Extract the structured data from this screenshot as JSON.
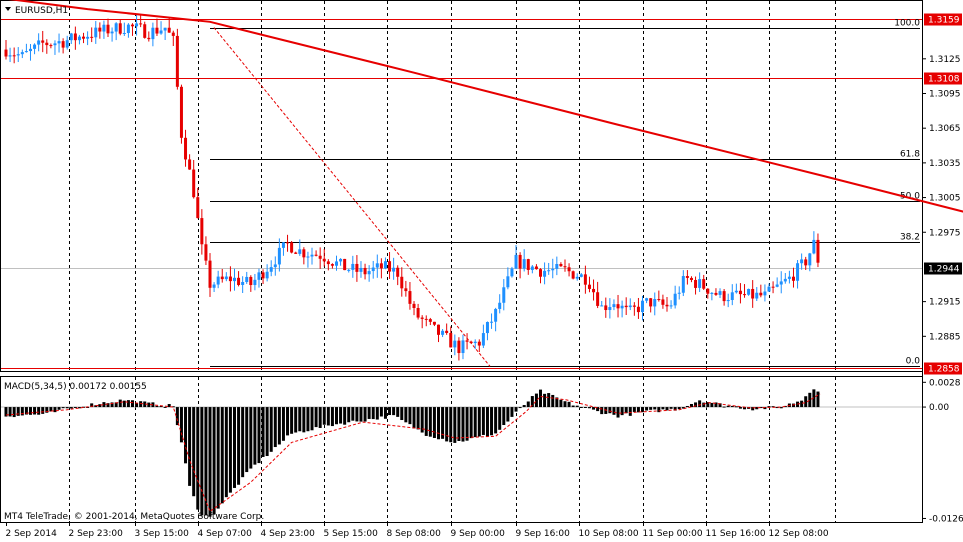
{
  "window": {
    "title": "EURUSD,H1",
    "copyright": "MT4 TeleTrade, © 2001-2014, MetaQuotes Software Corp."
  },
  "colors": {
    "bull": "#1e90ff",
    "bear": "#e60000",
    "ma": "#e60000",
    "line": "#e60000",
    "grid": "#000000",
    "macd": "#000000"
  },
  "chart_data": [
    {
      "type": "candlestick",
      "title": "EURUSD,H1",
      "ylim": [
        1.2855,
        1.3175
      ],
      "grid": true,
      "y_ticks": [
        "1.3125",
        "1.3095",
        "1.3065",
        "1.3035",
        "1.3005",
        "1.2975",
        "1.2915",
        "1.2885"
      ],
      "x_ticks": [
        "2 Sep 2014",
        "2 Sep 23:00",
        "3 Sep 15:00",
        "4 Sep 07:00",
        "4 Sep 23:00",
        "5 Sep 15:00",
        "8 Sep 08:00",
        "9 Sep 00:00",
        "9 Sep 16:00",
        "10 Sep 08:00",
        "11 Sep 00:00",
        "11 Sep 16:00",
        "12 Sep 08:00"
      ],
      "price_labels": [
        {
          "label": "1.3159",
          "price": 1.3159
        },
        {
          "label": "1.3108",
          "price": 1.3108
        },
        {
          "label": "1.2944",
          "price": 1.2944
        },
        {
          "label": "1.2858",
          "price": 1.2858
        }
      ],
      "fibonacci": [
        {
          "level": "100.0",
          "price": 1.3152
        },
        {
          "level": "61.8",
          "price": 1.3038
        },
        {
          "level": "50.0",
          "price": 1.3002
        },
        {
          "level": "38.2",
          "price": 1.2967
        },
        {
          "level": "0.0",
          "price": 1.2859
        }
      ],
      "moving_average": [
        [
          0,
          1.3177
        ],
        [
          40,
          1.3168
        ],
        [
          100,
          1.3157
        ],
        [
          200,
          1.3113
        ],
        [
          300,
          1.3068
        ],
        [
          400,
          1.3024
        ],
        [
          480,
          1.2988
        ]
      ],
      "close_anchors": [
        [
          0,
          1.3133
        ],
        [
          8,
          1.3127
        ],
        [
          18,
          1.3138
        ],
        [
          28,
          1.314
        ],
        [
          40,
          1.3146
        ],
        [
          50,
          1.315
        ],
        [
          60,
          1.3153
        ],
        [
          70,
          1.3148
        ],
        [
          78,
          1.3152
        ],
        [
          82,
          1.314
        ],
        [
          86,
          1.306
        ],
        [
          92,
          1.301
        ],
        [
          96,
          1.296
        ],
        [
          100,
          1.293
        ],
        [
          110,
          1.2935
        ],
        [
          120,
          1.293
        ],
        [
          130,
          1.2948
        ],
        [
          138,
          1.2965
        ],
        [
          145,
          1.2958
        ],
        [
          155,
          1.2955
        ],
        [
          165,
          1.2945
        ],
        [
          175,
          1.294
        ],
        [
          185,
          1.2945
        ],
        [
          192,
          1.294
        ],
        [
          200,
          1.2905
        ],
        [
          210,
          1.289
        ],
        [
          222,
          1.2875
        ],
        [
          232,
          1.288
        ],
        [
          240,
          1.2905
        ],
        [
          250,
          1.295
        ],
        [
          262,
          1.2942
        ],
        [
          274,
          1.2942
        ],
        [
          285,
          1.2935
        ],
        [
          292,
          1.291
        ],
        [
          298,
          1.2915
        ],
        [
          305,
          1.2905
        ],
        [
          315,
          1.2915
        ],
        [
          325,
          1.291
        ],
        [
          333,
          1.2935
        ],
        [
          340,
          1.293
        ],
        [
          350,
          1.292
        ],
        [
          360,
          1.292
        ],
        [
          372,
          1.292
        ],
        [
          384,
          1.2935
        ],
        [
          392,
          1.295
        ],
        [
          396,
          1.2965
        ],
        [
          399,
          1.2944
        ]
      ]
    },
    {
      "type": "histogram",
      "title": "MACD(5,34,5) 0.00172 0.00155",
      "ylim": [
        -0.013,
        0.0034
      ],
      "y_ticks": [
        "0.0028",
        "0.00",
        "-0.0126"
      ],
      "values": [
        [
          0,
          -0.001
        ],
        [
          20,
          -0.0008
        ],
        [
          30,
          -0.0002
        ],
        [
          45,
          0.0004
        ],
        [
          58,
          0.0008
        ],
        [
          70,
          0.0004
        ],
        [
          82,
          0.0001
        ],
        [
          86,
          -0.004
        ],
        [
          90,
          -0.009
        ],
        [
          95,
          -0.012
        ],
        [
          100,
          -0.0125
        ],
        [
          120,
          -0.007
        ],
        [
          140,
          -0.003
        ],
        [
          160,
          -0.002
        ],
        [
          175,
          -0.0015
        ],
        [
          190,
          -0.001
        ],
        [
          205,
          -0.003
        ],
        [
          220,
          -0.004
        ],
        [
          240,
          -0.003
        ],
        [
          255,
          0.0005
        ],
        [
          262,
          0.0018
        ],
        [
          275,
          0.0005
        ],
        [
          290,
          -0.0005
        ],
        [
          300,
          -0.001
        ],
        [
          315,
          -0.0005
        ],
        [
          330,
          -0.0002
        ],
        [
          340,
          0.0008
        ],
        [
          350,
          0.0003
        ],
        [
          365,
          -0.0002
        ],
        [
          380,
          0.0
        ],
        [
          390,
          0.0008
        ],
        [
          396,
          0.0022
        ],
        [
          399,
          0.0017
        ]
      ],
      "signal": [
        [
          0,
          -0.0009
        ],
        [
          30,
          -0.0003
        ],
        [
          58,
          0.0006
        ],
        [
          82,
          0.0
        ],
        [
          90,
          -0.006
        ],
        [
          100,
          -0.0118
        ],
        [
          120,
          -0.0085
        ],
        [
          140,
          -0.004
        ],
        [
          175,
          -0.0017
        ],
        [
          205,
          -0.0025
        ],
        [
          220,
          -0.0035
        ],
        [
          240,
          -0.0033
        ],
        [
          255,
          -0.0005
        ],
        [
          262,
          0.0012
        ],
        [
          275,
          0.0008
        ],
        [
          300,
          -0.0007
        ],
        [
          330,
          -0.0003
        ],
        [
          345,
          0.0005
        ],
        [
          365,
          -0.0001
        ],
        [
          380,
          0.0
        ],
        [
          392,
          0.0005
        ],
        [
          399,
          0.0015
        ]
      ]
    }
  ]
}
